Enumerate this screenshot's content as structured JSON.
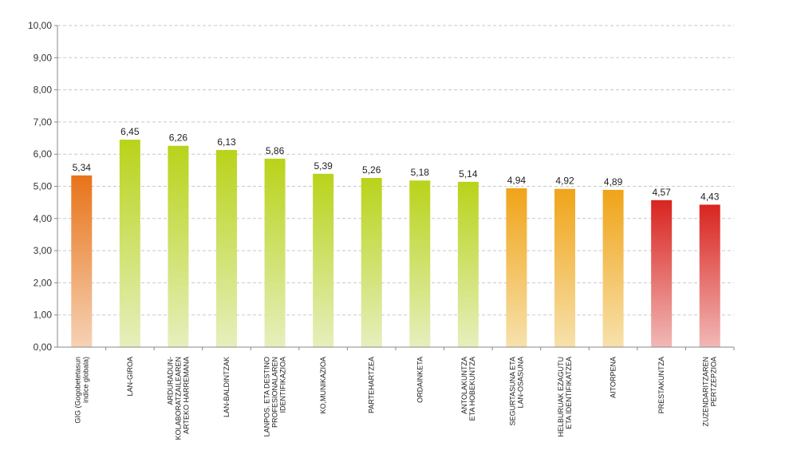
{
  "chart_data": {
    "type": "bar",
    "title": "",
    "xlabel": "",
    "ylabel": "",
    "ylim": [
      0,
      10
    ],
    "ytick_labels": [
      "0,00",
      "1,00",
      "2,00",
      "3,00",
      "4,00",
      "5,00",
      "6,00",
      "7,00",
      "8,00",
      "9,00",
      "10,00"
    ],
    "grid": true,
    "categories": [
      [
        "GIG (Gogobetetasun",
        "indice globala)"
      ],
      [
        "LAN-GIROA"
      ],
      [
        "ARDURADUN-",
        "KOLABORATZAILEAREN",
        "ARTEKO HARREMANA"
      ],
      [
        "LAN-BALDINTZAK"
      ],
      [
        "LANPOS. ETA DESTINO",
        "PROFESIONALAREN",
        "IDENTIFIKAZIOA"
      ],
      [
        "KO,MUNIKAZIOA"
      ],
      [
        "PARTEHARTZEA"
      ],
      [
        "ORDAINKETA"
      ],
      [
        "ANTOLAKUNTZA",
        "ETA HOBEKUNTZA"
      ],
      [
        "SEGURTASUNA ETA",
        "LAN-OSASUNA"
      ],
      [
        "HELBURUAK EZAGUTU",
        "ETA IDENTIFIKATZEA"
      ],
      [
        "AITORPENA"
      ],
      [
        "PRESTAKUNTZA"
      ],
      [
        "ZUZENDARITZAREN",
        "PERTZEPZIOA"
      ]
    ],
    "values": [
      5.34,
      6.45,
      6.26,
      6.13,
      5.86,
      5.39,
      5.26,
      5.18,
      5.14,
      4.94,
      4.92,
      4.89,
      4.57,
      4.43
    ],
    "value_labels": [
      "5,34",
      "6,45",
      "6,26",
      "6,13",
      "5,86",
      "5,39",
      "5,26",
      "5,18",
      "5,14",
      "4,94",
      "4,92",
      "4,89",
      "4,57",
      "4,43"
    ],
    "bar_colors": [
      {
        "top": "#e8731a",
        "bottom": "#f6d2b4"
      },
      {
        "top": "#b9d31a",
        "bottom": "#e6efbd"
      },
      {
        "top": "#b9d31a",
        "bottom": "#e6efbd"
      },
      {
        "top": "#b9d31a",
        "bottom": "#e6efbd"
      },
      {
        "top": "#b9d31a",
        "bottom": "#e6efbd"
      },
      {
        "top": "#b9d31a",
        "bottom": "#e6efbd"
      },
      {
        "top": "#b9d31a",
        "bottom": "#e6efbd"
      },
      {
        "top": "#b9d31a",
        "bottom": "#e6efbd"
      },
      {
        "top": "#b9d31a",
        "bottom": "#e6efbd"
      },
      {
        "top": "#f0a419",
        "bottom": "#f7e1ab"
      },
      {
        "top": "#f0a419",
        "bottom": "#f7e1ab"
      },
      {
        "top": "#f0a419",
        "bottom": "#f7e1ab"
      },
      {
        "top": "#d9241f",
        "bottom": "#f1b8b6"
      },
      {
        "top": "#d9241f",
        "bottom": "#f1b8b6"
      }
    ]
  }
}
